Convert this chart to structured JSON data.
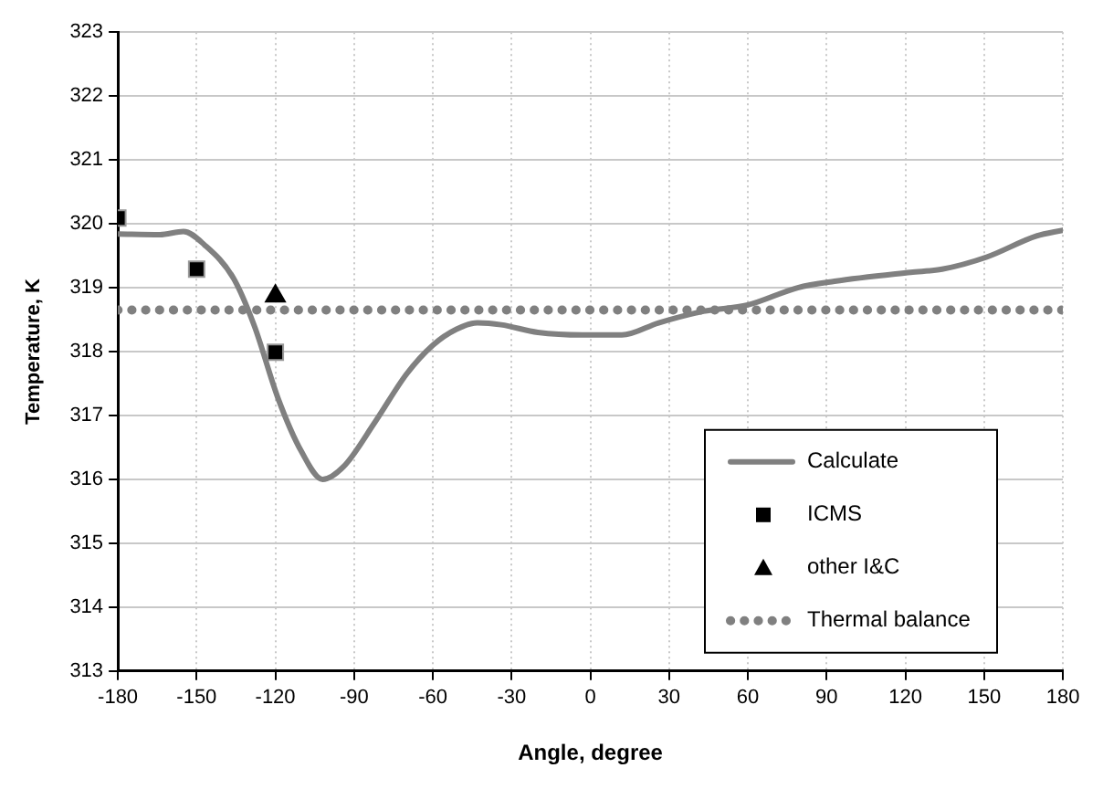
{
  "chart_data": {
    "type": "line",
    "xlabel": "Angle, degree",
    "ylabel": "Temperature, K",
    "xlim": [
      -180,
      180
    ],
    "xticks": [
      -180,
      -150,
      -120,
      -90,
      -60,
      -30,
      0,
      30,
      60,
      90,
      120,
      150,
      180
    ],
    "ylim": [
      313,
      323
    ],
    "yticks": [
      313,
      314,
      315,
      316,
      317,
      318,
      319,
      320,
      321,
      322,
      323
    ],
    "grid": true,
    "legend": "bottom right",
    "series": [
      {
        "name": "Calculate",
        "type": "line",
        "color": "#808080",
        "marker": "none",
        "line_style": "solid",
        "x": [
          -180,
          -164,
          -155,
          -147,
          -136,
          -128,
          -119,
          -110,
          -102,
          -94,
          -82,
          -70,
          -60,
          -51,
          -43,
          -34,
          -20,
          -3,
          12,
          26,
          43,
          60,
          79,
          93,
          122,
          134,
          151,
          170,
          180
        ],
        "values": [
          319.84,
          319.83,
          319.88,
          319.67,
          319.15,
          318.4,
          317.27,
          316.43,
          316.0,
          316.2,
          316.9,
          317.65,
          318.1,
          318.35,
          318.45,
          318.42,
          318.3,
          318.26,
          318.26,
          318.45,
          318.63,
          318.73,
          319.0,
          319.1,
          319.24,
          319.29,
          319.48,
          319.81,
          319.9
        ]
      },
      {
        "name": "ICMS",
        "type": "scatter",
        "color": "#000000",
        "marker": "square",
        "x": [
          -180,
          -150,
          -120
        ],
        "values": [
          320.09,
          319.29,
          317.99
        ]
      },
      {
        "name": "other I&C",
        "type": "scatter",
        "color": "#000000",
        "marker": "triangle",
        "x": [
          -120
        ],
        "values": [
          318.87
        ]
      },
      {
        "name": "Thermal balance",
        "type": "line",
        "color": "#808080",
        "marker": "none",
        "line_style": "dotted",
        "x": [
          -180,
          180
        ],
        "values": [
          318.65,
          318.65
        ]
      }
    ]
  }
}
